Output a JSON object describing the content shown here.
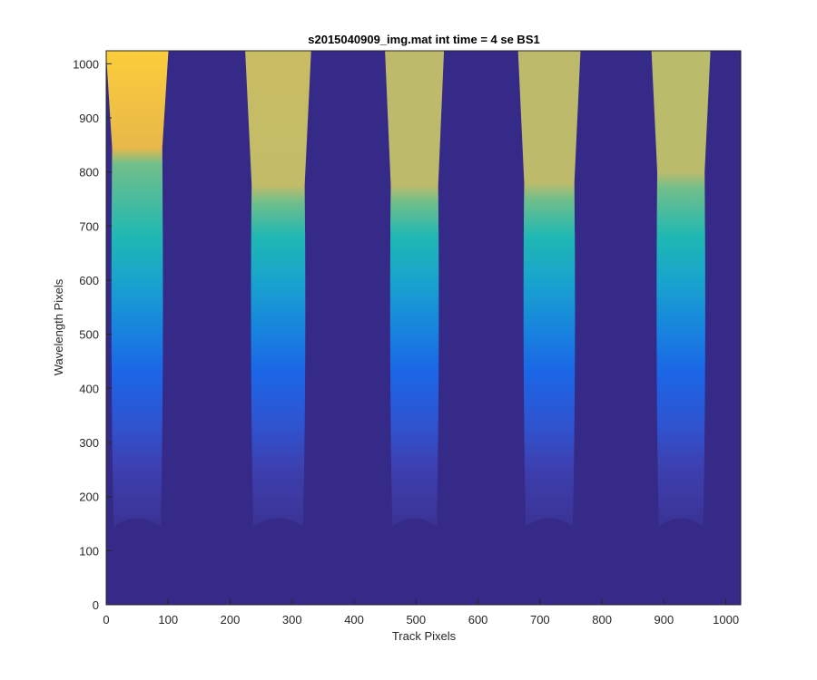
{
  "chart_data": {
    "type": "heatmap",
    "title": "s2015040909_img.mat int time = 4 se   BS1",
    "xlabel": "Track Pixels",
    "ylabel": "Wavelength Pixels",
    "xlim": [
      0,
      1024
    ],
    "ylim": [
      0,
      1024
    ],
    "xticks": [
      0,
      100,
      200,
      300,
      400,
      500,
      600,
      700,
      800,
      900,
      1000
    ],
    "yticks": [
      0,
      100,
      200,
      300,
      400,
      500,
      600,
      700,
      800,
      900,
      1000
    ],
    "colormap": "parula",
    "background_color": "#352a87",
    "bands": [
      {
        "left": 5,
        "right": 95,
        "bottom": 145,
        "plateau_start": 845,
        "peak_color": "#fbcd3a",
        "plateau_color": "#e8b84a"
      },
      {
        "left": 230,
        "right": 325,
        "bottom": 145,
        "plateau_start": 775,
        "peak_color": "#c9bd63",
        "plateau_color": "#c2bb68"
      },
      {
        "left": 455,
        "right": 540,
        "bottom": 145,
        "plateau_start": 775,
        "peak_color": "#bdbb6b",
        "plateau_color": "#bdbb6b"
      },
      {
        "left": 670,
        "right": 760,
        "bottom": 145,
        "plateau_start": 780,
        "peak_color": "#bdbb6b",
        "plateau_color": "#bdbb6b"
      },
      {
        "left": 885,
        "right": 970,
        "bottom": 145,
        "plateau_start": 800,
        "peak_color": "#bbbb6c",
        "plateau_color": "#bbbb6c"
      }
    ],
    "grid": false,
    "legend": false
  }
}
